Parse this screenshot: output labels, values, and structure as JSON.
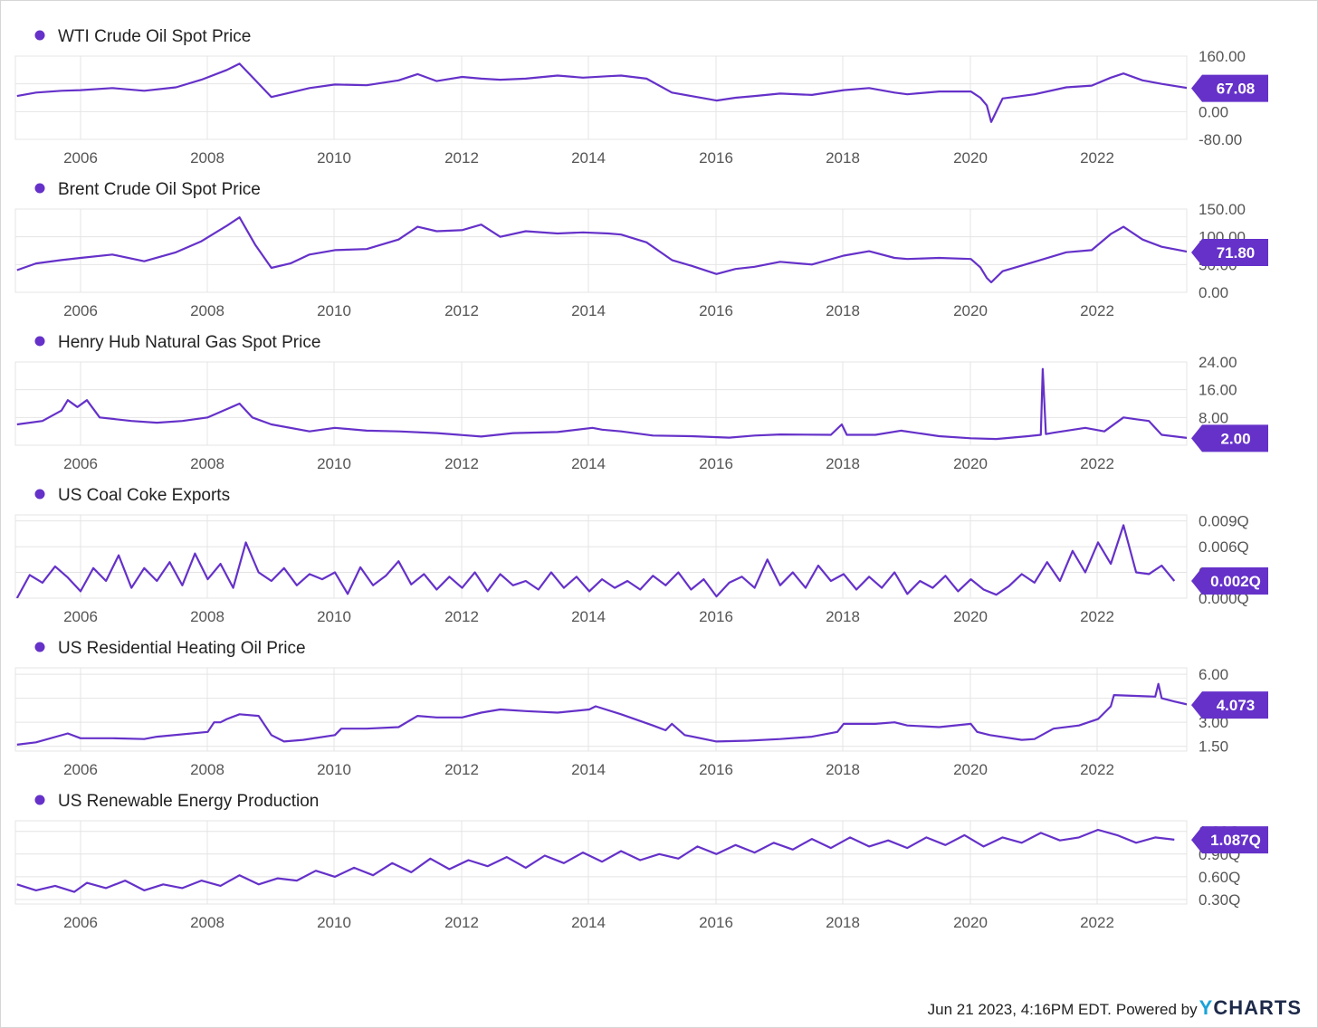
{
  "footer": {
    "timestamp": "Jun 21 2023, 4:16PM EDT.",
    "powered_by": "Powered by",
    "brand_y": "Y",
    "brand_rest": "CHARTS"
  },
  "colors": {
    "series": "#6531c9",
    "badge": "#6531c9",
    "grid": "#e4e4e4"
  },
  "chart_data": [
    {
      "type": "line",
      "title": "WTI Crude Oil Spot Price",
      "x_ticks": [
        "2006",
        "2008",
        "2010",
        "2012",
        "2014",
        "2016",
        "2018",
        "2020",
        "2022"
      ],
      "x_range": [
        2005.0,
        2023.45
      ],
      "y_ticks": [
        "160.00",
        "80.00",
        "0.00",
        "-80.00"
      ],
      "y_tick_values": [
        160,
        80,
        0,
        -80
      ],
      "ylim": [
        -80,
        160
      ],
      "last_value": 67.08,
      "last_label": "67.08",
      "series": [
        {
          "x": [
            2005.0,
            2005.3,
            2005.7,
            2006.0,
            2006.5,
            2007.0,
            2007.5,
            2007.9,
            2008.3,
            2008.5,
            2008.75,
            2009.0,
            2009.3,
            2009.6,
            2010.0,
            2010.5,
            2011.0,
            2011.3,
            2011.6,
            2012.0,
            2012.3,
            2012.6,
            2013.0,
            2013.5,
            2013.9,
            2014.3,
            2014.5,
            2014.9,
            2015.3,
            2015.6,
            2016.0,
            2016.3,
            2016.6,
            2017.0,
            2017.5,
            2018.0,
            2018.4,
            2018.8,
            2019.0,
            2019.5,
            2020.0,
            2020.15,
            2020.25,
            2020.32,
            2020.5,
            2021.0,
            2021.5,
            2021.9,
            2022.2,
            2022.4,
            2022.7,
            2023.0,
            2023.45
          ],
          "y": [
            45,
            55,
            60,
            62,
            68,
            60,
            70,
            92,
            120,
            138,
            90,
            42,
            55,
            68,
            78,
            76,
            90,
            108,
            88,
            100,
            95,
            92,
            95,
            104,
            98,
            102,
            104,
            95,
            55,
            45,
            32,
            40,
            45,
            52,
            48,
            62,
            68,
            55,
            50,
            58,
            58,
            40,
            18,
            -30,
            38,
            50,
            70,
            75,
            98,
            110,
            90,
            80,
            67
          ]
        }
      ]
    },
    {
      "type": "line",
      "title": "Brent Crude Oil Spot Price",
      "x_ticks": [
        "2006",
        "2008",
        "2010",
        "2012",
        "2014",
        "2016",
        "2018",
        "2020",
        "2022"
      ],
      "x_range": [
        2005.0,
        2023.45
      ],
      "y_ticks": [
        "150.00",
        "100.00",
        "50.00",
        "0.00"
      ],
      "y_tick_values": [
        150,
        100,
        50,
        0
      ],
      "ylim": [
        0,
        150
      ],
      "last_value": 71.8,
      "last_label": "71.80",
      "series": [
        {
          "x": [
            2005.0,
            2005.3,
            2005.7,
            2006.0,
            2006.5,
            2007.0,
            2007.5,
            2007.9,
            2008.3,
            2008.5,
            2008.75,
            2009.0,
            2009.3,
            2009.6,
            2010.0,
            2010.5,
            2011.0,
            2011.3,
            2011.6,
            2012.0,
            2012.3,
            2012.6,
            2013.0,
            2013.5,
            2013.9,
            2014.3,
            2014.5,
            2014.9,
            2015.3,
            2015.6,
            2016.0,
            2016.3,
            2016.6,
            2017.0,
            2017.5,
            2018.0,
            2018.4,
            2018.8,
            2019.0,
            2019.5,
            2020.0,
            2020.15,
            2020.25,
            2020.32,
            2020.5,
            2021.0,
            2021.5,
            2021.9,
            2022.2,
            2022.4,
            2022.7,
            2023.0,
            2023.45
          ],
          "y": [
            40,
            52,
            58,
            62,
            68,
            56,
            72,
            92,
            120,
            135,
            85,
            44,
            52,
            68,
            76,
            78,
            95,
            118,
            110,
            112,
            122,
            100,
            110,
            106,
            108,
            106,
            104,
            90,
            58,
            48,
            33,
            42,
            46,
            55,
            50,
            66,
            74,
            62,
            60,
            62,
            60,
            45,
            26,
            18,
            38,
            55,
            72,
            76,
            105,
            118,
            95,
            82,
            72
          ]
        }
      ]
    },
    {
      "type": "line",
      "title": "Henry Hub Natural Gas Spot Price",
      "x_ticks": [
        "2006",
        "2008",
        "2010",
        "2012",
        "2014",
        "2016",
        "2018",
        "2020",
        "2022"
      ],
      "x_range": [
        2005.0,
        2023.45
      ],
      "y_ticks": [
        "24.00",
        "16.00",
        "8.00",
        "0.00"
      ],
      "y_tick_values": [
        24,
        16,
        8,
        0
      ],
      "ylim": [
        0,
        24
      ],
      "last_value": 2.0,
      "last_label": "2.00",
      "series": [
        {
          "x": [
            2005.0,
            2005.4,
            2005.7,
            2005.8,
            2005.95,
            2006.1,
            2006.3,
            2006.8,
            2007.2,
            2007.6,
            2008.0,
            2008.5,
            2008.7,
            2009.0,
            2009.6,
            2010.0,
            2010.5,
            2011.0,
            2011.6,
            2012.3,
            2012.8,
            2013.5,
            2014.05,
            2014.2,
            2014.5,
            2015.0,
            2015.6,
            2016.2,
            2016.6,
            2017.0,
            2017.8,
            2017.97,
            2018.05,
            2018.5,
            2018.9,
            2019.5,
            2020.0,
            2020.4,
            2020.9,
            2021.1,
            2021.13,
            2021.18,
            2021.3,
            2021.8,
            2022.1,
            2022.4,
            2022.6,
            2022.8,
            2023.0,
            2023.45
          ],
          "y": [
            6,
            7,
            10,
            13,
            11,
            13,
            8,
            7,
            6.5,
            7,
            8,
            12,
            8,
            6,
            4,
            5,
            4.2,
            4,
            3.5,
            2.5,
            3.5,
            3.8,
            5,
            4.5,
            4,
            2.8,
            2.6,
            2.2,
            2.8,
            3.1,
            3,
            6,
            3,
            3,
            4.2,
            2.6,
            2,
            1.8,
            2.6,
            3,
            22,
            3.2,
            3.6,
            5,
            4,
            8,
            7.5,
            7,
            3,
            2
          ]
        }
      ]
    },
    {
      "type": "line",
      "title": "US Coal Coke Exports",
      "x_ticks": [
        "2006",
        "2008",
        "2010",
        "2012",
        "2014",
        "2016",
        "2018",
        "2020",
        "2022"
      ],
      "x_range": [
        2005.0,
        2023.45
      ],
      "y_ticks": [
        "0.009Q",
        "0.006Q",
        "0.003Q",
        "0.000Q"
      ],
      "y_tick_values": [
        0.009,
        0.006,
        0.003,
        0.0
      ],
      "ylim": [
        0,
        0.0097
      ],
      "last_value": 0.002,
      "last_label": "0.002Q",
      "series": [
        {
          "x": [
            2005.0,
            2005.2,
            2005.4,
            2005.6,
            2005.8,
            2006.0,
            2006.2,
            2006.4,
            2006.6,
            2006.8,
            2007.0,
            2007.2,
            2007.4,
            2007.6,
            2007.8,
            2008.0,
            2008.2,
            2008.4,
            2008.6,
            2008.8,
            2009.0,
            2009.2,
            2009.4,
            2009.6,
            2009.8,
            2010.0,
            2010.2,
            2010.4,
            2010.6,
            2010.8,
            2011.0,
            2011.2,
            2011.4,
            2011.6,
            2011.8,
            2012.0,
            2012.2,
            2012.4,
            2012.6,
            2012.8,
            2013.0,
            2013.2,
            2013.4,
            2013.6,
            2013.8,
            2014.0,
            2014.2,
            2014.4,
            2014.6,
            2014.8,
            2015.0,
            2015.2,
            2015.4,
            2015.6,
            2015.8,
            2016.0,
            2016.2,
            2016.4,
            2016.6,
            2016.8,
            2017.0,
            2017.2,
            2017.4,
            2017.6,
            2017.8,
            2018.0,
            2018.2,
            2018.4,
            2018.6,
            2018.8,
            2019.0,
            2019.2,
            2019.4,
            2019.6,
            2019.8,
            2020.0,
            2020.2,
            2020.4,
            2020.6,
            2020.8,
            2021.0,
            2021.2,
            2021.4,
            2021.6,
            2021.8,
            2022.0,
            2022.2,
            2022.4,
            2022.6,
            2022.8,
            2023.0,
            2023.2
          ],
          "y": [
            0.0,
            0.0027,
            0.0018,
            0.0037,
            0.0024,
            0.0008,
            0.0035,
            0.002,
            0.005,
            0.0012,
            0.0035,
            0.002,
            0.0042,
            0.0015,
            0.0052,
            0.0022,
            0.004,
            0.0012,
            0.0065,
            0.003,
            0.002,
            0.0035,
            0.0015,
            0.0028,
            0.0022,
            0.003,
            0.0005,
            0.0036,
            0.0015,
            0.0026,
            0.0043,
            0.0016,
            0.0028,
            0.001,
            0.0025,
            0.0012,
            0.003,
            0.0008,
            0.0028,
            0.0015,
            0.002,
            0.001,
            0.003,
            0.0012,
            0.0025,
            0.0008,
            0.0022,
            0.0012,
            0.002,
            0.001,
            0.0026,
            0.0015,
            0.003,
            0.001,
            0.0022,
            0.0002,
            0.0018,
            0.0025,
            0.0012,
            0.0045,
            0.0015,
            0.003,
            0.0012,
            0.0038,
            0.002,
            0.0028,
            0.001,
            0.0025,
            0.0012,
            0.003,
            0.0005,
            0.002,
            0.0012,
            0.0026,
            0.0008,
            0.0022,
            0.001,
            0.0004,
            0.0014,
            0.0028,
            0.0018,
            0.0042,
            0.002,
            0.0055,
            0.003,
            0.0065,
            0.004,
            0.0085,
            0.003,
            0.0028,
            0.0038,
            0.002
          ]
        }
      ]
    },
    {
      "type": "line",
      "title": "US Residential Heating Oil Price",
      "x_ticks": [
        "2006",
        "2008",
        "2010",
        "2012",
        "2014",
        "2016",
        "2018",
        "2020",
        "2022"
      ],
      "x_range": [
        2005.0,
        2023.45
      ],
      "y_ticks": [
        "6.00",
        "4.50",
        "3.00",
        "1.50"
      ],
      "y_tick_values": [
        6.0,
        4.5,
        3.0,
        1.5
      ],
      "ylim": [
        1.2,
        6.4
      ],
      "last_value": 4.073,
      "last_label": "4.073",
      "series": [
        {
          "x": [
            2005.0,
            2005.3,
            2005.8,
            2006.0,
            2006.5,
            2007.0,
            2007.2,
            2008.0,
            2008.1,
            2008.2,
            2008.3,
            2008.5,
            2008.8,
            2009.0,
            2009.2,
            2009.5,
            2010.0,
            2010.1,
            2010.5,
            2011.0,
            2011.3,
            2011.6,
            2012.0,
            2012.3,
            2012.6,
            2013.0,
            2013.5,
            2014.0,
            2014.1,
            2014.5,
            2015.0,
            2015.2,
            2015.3,
            2015.5,
            2016.0,
            2016.5,
            2017.0,
            2017.5,
            2017.9,
            2018.0,
            2018.5,
            2018.8,
            2019.0,
            2019.5,
            2020.0,
            2020.1,
            2020.3,
            2020.8,
            2021.0,
            2021.3,
            2021.7,
            2022.0,
            2022.2,
            2022.25,
            2022.9,
            2022.95,
            2023.0,
            2023.2,
            2023.45
          ],
          "y": [
            1.6,
            1.75,
            2.3,
            2.0,
            2.0,
            1.95,
            2.1,
            2.4,
            3.0,
            3.0,
            3.2,
            3.5,
            3.4,
            2.2,
            1.8,
            1.9,
            2.2,
            2.6,
            2.6,
            2.7,
            3.4,
            3.3,
            3.3,
            3.6,
            3.8,
            3.7,
            3.6,
            3.8,
            4.0,
            3.5,
            2.8,
            2.5,
            2.9,
            2.2,
            1.8,
            1.85,
            1.95,
            2.1,
            2.4,
            2.9,
            2.9,
            3.0,
            2.8,
            2.7,
            2.9,
            2.4,
            2.2,
            1.9,
            1.95,
            2.6,
            2.8,
            3.2,
            4.0,
            4.7,
            4.6,
            5.4,
            4.5,
            4.3,
            4.07
          ]
        }
      ]
    },
    {
      "type": "line",
      "title": "US Renewable Energy Production",
      "x_ticks": [
        "2006",
        "2008",
        "2010",
        "2012",
        "2014",
        "2016",
        "2018",
        "2020",
        "2022"
      ],
      "x_range": [
        2005.0,
        2023.45
      ],
      "y_ticks": [
        "1.20Q",
        "0.90Q",
        "0.60Q",
        "0.30Q"
      ],
      "y_tick_values": [
        1.2,
        0.9,
        0.6,
        0.3
      ],
      "ylim": [
        0.24,
        1.34
      ],
      "last_value": 1.087,
      "last_label": "1.087Q",
      "series": [
        {
          "x": [
            2005.0,
            2005.3,
            2005.6,
            2005.9,
            2006.1,
            2006.4,
            2006.7,
            2007.0,
            2007.3,
            2007.6,
            2007.9,
            2008.2,
            2008.5,
            2008.8,
            2009.1,
            2009.4,
            2009.7,
            2010.0,
            2010.3,
            2010.6,
            2010.9,
            2011.2,
            2011.5,
            2011.8,
            2012.1,
            2012.4,
            2012.7,
            2013.0,
            2013.3,
            2013.6,
            2013.9,
            2014.2,
            2014.5,
            2014.8,
            2015.1,
            2015.4,
            2015.7,
            2016.0,
            2016.3,
            2016.6,
            2016.9,
            2017.2,
            2017.5,
            2017.8,
            2018.1,
            2018.4,
            2018.7,
            2019.0,
            2019.3,
            2019.6,
            2019.9,
            2020.2,
            2020.5,
            2020.8,
            2021.1,
            2021.4,
            2021.7,
            2022.0,
            2022.3,
            2022.6,
            2022.9,
            2023.2
          ],
          "y": [
            0.5,
            0.42,
            0.48,
            0.4,
            0.52,
            0.45,
            0.55,
            0.42,
            0.5,
            0.45,
            0.55,
            0.48,
            0.62,
            0.5,
            0.58,
            0.55,
            0.68,
            0.6,
            0.72,
            0.62,
            0.78,
            0.66,
            0.84,
            0.7,
            0.82,
            0.74,
            0.86,
            0.72,
            0.88,
            0.78,
            0.92,
            0.8,
            0.94,
            0.82,
            0.9,
            0.84,
            1.0,
            0.9,
            1.02,
            0.92,
            1.05,
            0.96,
            1.1,
            0.98,
            1.12,
            1.0,
            1.08,
            0.98,
            1.12,
            1.02,
            1.15,
            1.0,
            1.12,
            1.05,
            1.18,
            1.08,
            1.12,
            1.22,
            1.15,
            1.05,
            1.12,
            1.09
          ]
        }
      ]
    }
  ]
}
